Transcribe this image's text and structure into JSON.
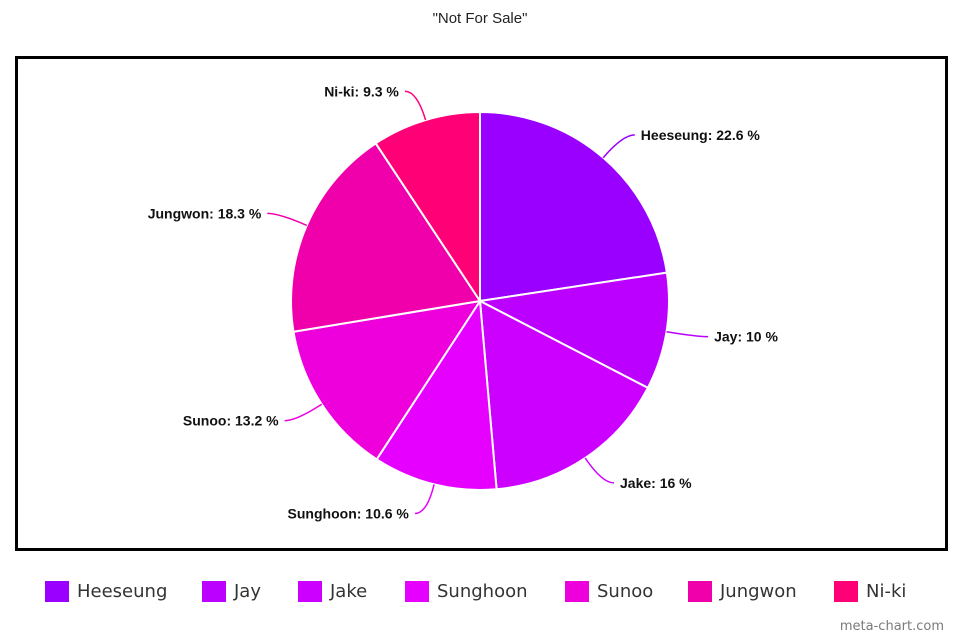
{
  "watermark": "meta-chart.com",
  "chart_data": {
    "type": "pie",
    "title": "\"Not For Sale\"",
    "slices": [
      {
        "name": "Heeseung",
        "value": 22.6,
        "label": "Heeseung: 22.6 %",
        "color": "#9900ff"
      },
      {
        "name": "Jay",
        "value": 10,
        "label": "Jay: 10 %",
        "color": "#bb00ff"
      },
      {
        "name": "Jake",
        "value": 16,
        "label": "Jake: 16 %",
        "color": "#cc00ff"
      },
      {
        "name": "Sunghoon",
        "value": 10.6,
        "label": "Sunghoon: 10.6 %",
        "color": "#e600ff"
      },
      {
        "name": "Sunoo",
        "value": 13.2,
        "label": "Sunoo: 13.2 %",
        "color": "#ee00dd"
      },
      {
        "name": "Jungwon",
        "value": 18.3,
        "label": "Jungwon: 18.3 %",
        "color": "#f000aa"
      },
      {
        "name": "Ni-ki",
        "value": 9.3,
        "label": "Ni-ki: 9.3 %",
        "color": "#ff0077"
      }
    ],
    "legend": "bottom"
  }
}
